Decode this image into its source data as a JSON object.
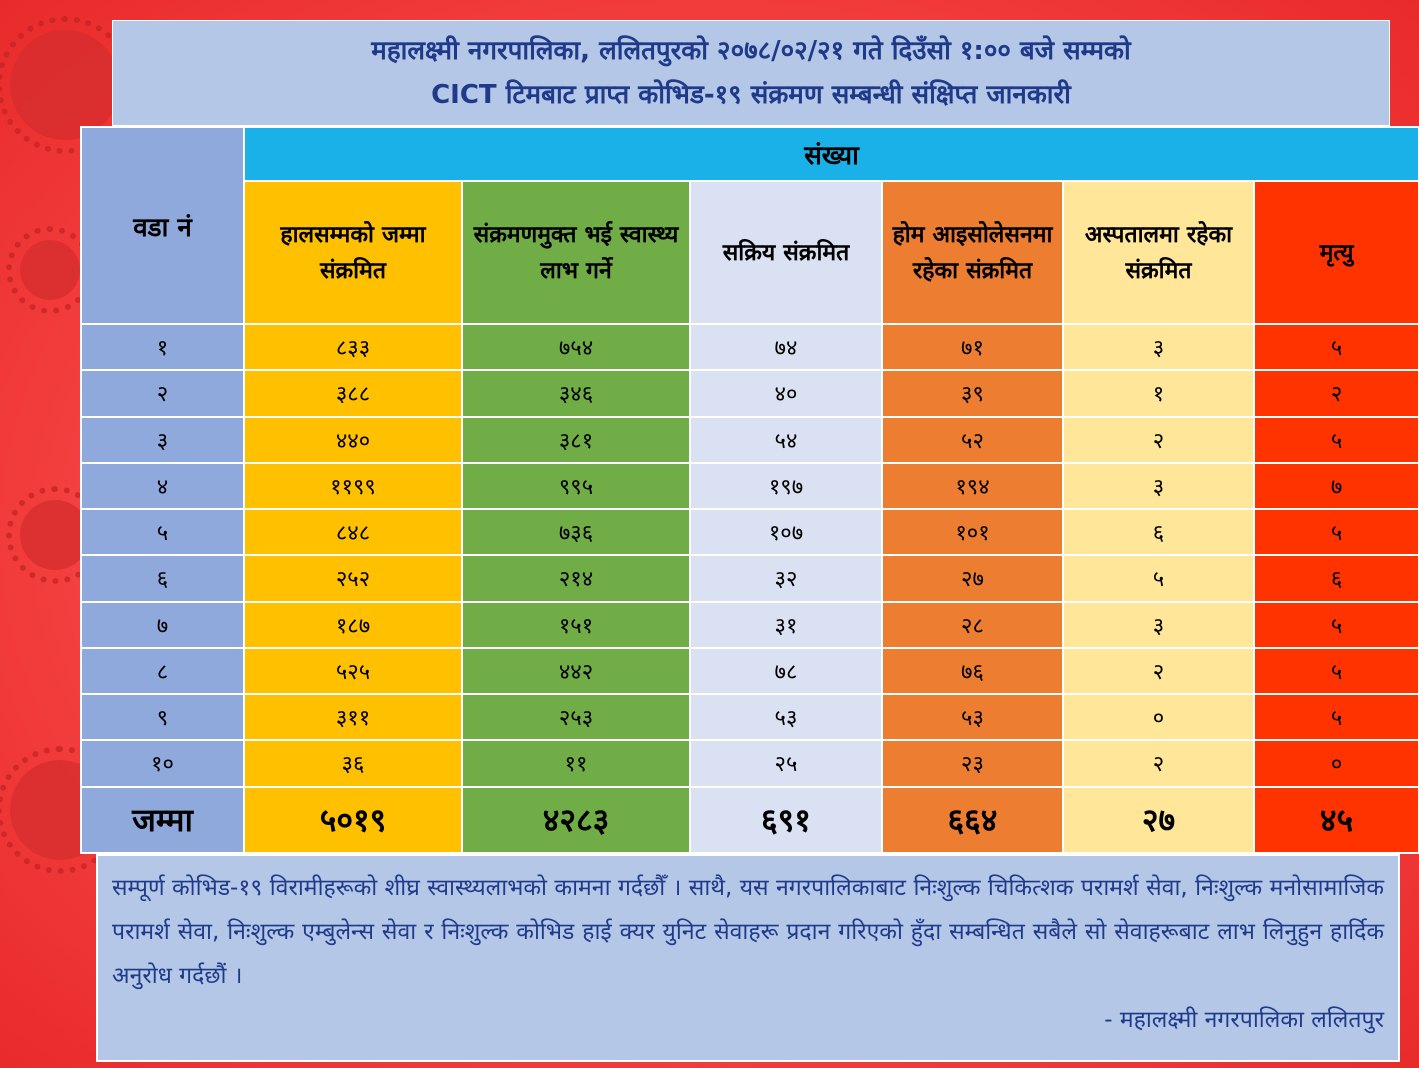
{
  "title": {
    "line1": "महालक्ष्मी नगरपालिका, ललितपुरको २०७८/०२/२१ गते दिउँसो १:०० बजे सम्मको",
    "line2": "CICT टिमबाट प्राप्त कोभिड-१९ संक्रमण सम्बन्धी संक्षिप्त जानकारी"
  },
  "table": {
    "ward_header": "वडा नं",
    "group_header": "संख्या",
    "columns": [
      "हालसम्मको जम्मा संक्रमित",
      "संक्रमणमुक्त भई स्वास्थ्य लाभ गर्ने",
      "सक्रिय संक्रमित",
      "होम आइसोलेसनमा रहेका संक्रमित",
      "अस्पतालमा रहेका संक्रमित",
      "मृत्यु"
    ],
    "rows": [
      [
        "१",
        "८३३",
        "७५४",
        "७४",
        "७१",
        "३",
        "५"
      ],
      [
        "२",
        "३८८",
        "३४६",
        "४०",
        "३९",
        "१",
        "२"
      ],
      [
        "३",
        "४४०",
        "३८१",
        "५४",
        "५२",
        "२",
        "५"
      ],
      [
        "४",
        "११९९",
        "९९५",
        "१९७",
        "१९४",
        "३",
        "७"
      ],
      [
        "५",
        "८४८",
        "७३६",
        "१०७",
        "१०१",
        "६",
        "५"
      ],
      [
        "६",
        "२५२",
        "२१४",
        "३२",
        "२७",
        "५",
        "६"
      ],
      [
        "७",
        "१८७",
        "१५१",
        "३१",
        "२८",
        "३",
        "५"
      ],
      [
        "८",
        "५२५",
        "४४२",
        "७८",
        "७६",
        "२",
        "५"
      ],
      [
        "९",
        "३११",
        "२५३",
        "५३",
        "५३",
        "०",
        "५"
      ],
      [
        "१०",
        "३६",
        "११",
        "२५",
        "२३",
        "२",
        "०"
      ]
    ],
    "total": [
      "जम्मा",
      "५०१९",
      "४२८३",
      "६९१",
      "६६४",
      "२७",
      "४५"
    ]
  },
  "note": {
    "text": "सम्पूर्ण कोभिड-१९ विरामीहरूको शीघ्र स्वास्थ्यलाभको कामना गर्दछौँ । साथै, यस नगरपालिकाबाट निःशुल्क चिकित्शक परामर्श सेवा, निःशुल्क मनोसामाजिक परामर्श सेवा, निःशुल्क एम्बुलेन्स सेवा र निःशुल्क कोभिड हाई क्यर युनिट सेवाहरू प्रदान गरिएको हुँदा सम्बन्धित सबैले सो सेवाहरूबाट लाभ लिनुहुन हार्दिक अनुरोध गर्दछौं ।",
    "signature": "- महालक्ष्मी नगरपालिका ललितपुर"
  }
}
